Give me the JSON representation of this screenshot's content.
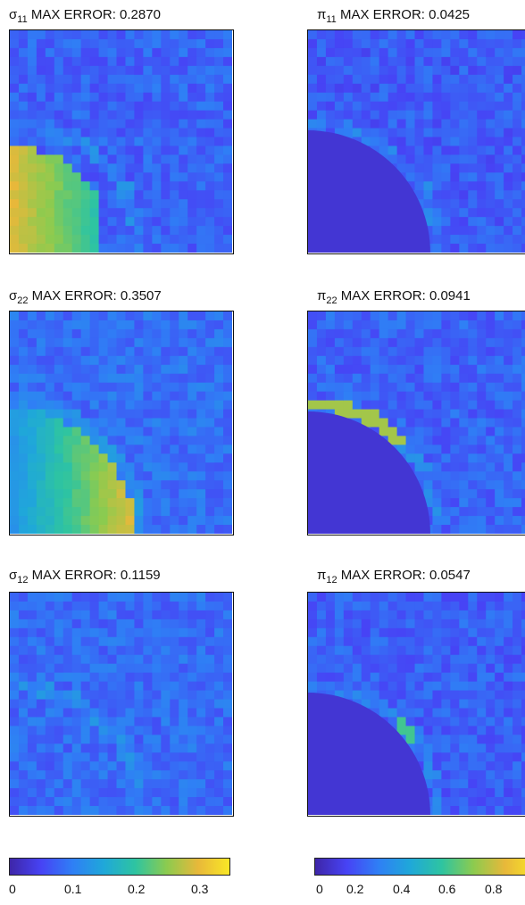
{
  "chart_data": [
    {
      "type": "heatmap",
      "title": {
        "symbol": "σ",
        "sub": "11",
        "text": " MAX ERROR: 0.2870"
      },
      "max_error": 0.287,
      "colorbar": "left",
      "hole": false
    },
    {
      "type": "heatmap",
      "title": {
        "symbol": "π",
        "sub": "11",
        "text": " MAX ERROR: 0.0425"
      },
      "max_error": 0.0425,
      "colorbar": "right",
      "hole": true
    },
    {
      "type": "heatmap",
      "title": {
        "symbol": "σ",
        "sub": "22",
        "text": " MAX ERROR: 0.3507"
      },
      "max_error": 0.3507,
      "colorbar": "left",
      "hole": false
    },
    {
      "type": "heatmap",
      "title": {
        "symbol": "π",
        "sub": "22",
        "text": " MAX ERROR: 0.0941"
      },
      "max_error": 0.0941,
      "colorbar": "right",
      "hole": true
    },
    {
      "type": "heatmap",
      "title": {
        "symbol": "σ",
        "sub": "12",
        "text": " MAX ERROR: 0.1159"
      },
      "max_error": 0.1159,
      "colorbar": "left",
      "hole": false
    },
    {
      "type": "heatmap",
      "title": {
        "symbol": "π",
        "sub": "12",
        "text": " MAX ERROR: 0.0547"
      },
      "max_error": 0.0547,
      "colorbar": "right",
      "hole": true
    }
  ],
  "colorbars": {
    "left": {
      "range": [
        0,
        0.35
      ],
      "ticks": [
        "0",
        "0.1",
        "0.2",
        "0.3"
      ]
    },
    "right": {
      "range": [
        0,
        1
      ],
      "ticks": [
        "0",
        "0.2",
        "0.4",
        "0.6",
        "0.8"
      ]
    }
  },
  "colormap": [
    "#3e26a8",
    "#4743f5",
    "#2f7ff5",
    "#1fa8d9",
    "#2ec4a1",
    "#8ccb4f",
    "#e8b83a",
    "#f9e726"
  ]
}
